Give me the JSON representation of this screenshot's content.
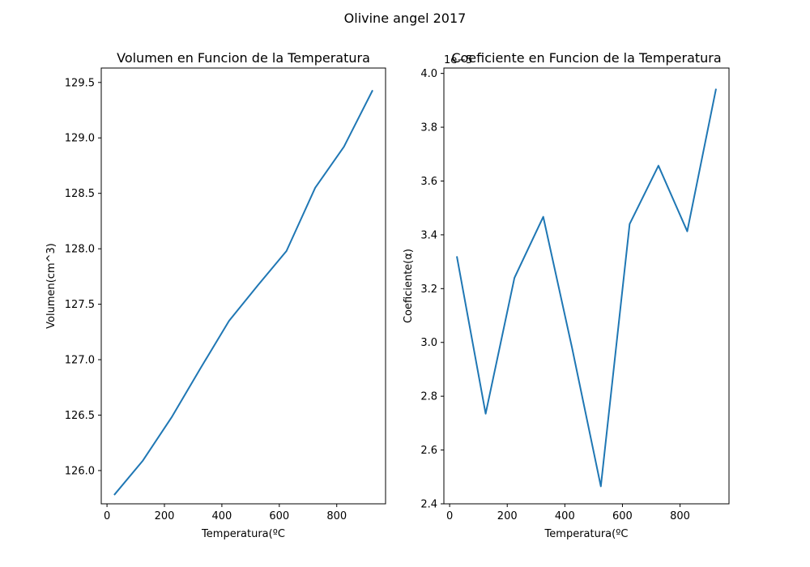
{
  "figure_title": "Olivine angel 2017",
  "colors": {
    "series": "#1f77b4"
  },
  "chart_data": [
    {
      "type": "line",
      "title": "Volumen en Funcion de la Temperatura",
      "xlabel": "Temperatura(ºC",
      "ylabel": "Volumen(cm^3)",
      "xlim": [
        -20,
        970
      ],
      "ylim": [
        125.7,
        129.63
      ],
      "xticks": [
        0,
        200,
        400,
        600,
        800
      ],
      "xtick_labels": [
        "0",
        "200",
        "400",
        "600",
        "800"
      ],
      "yticks": [
        126.0,
        126.5,
        127.0,
        127.5,
        128.0,
        128.5,
        129.0,
        129.5
      ],
      "ytick_labels": [
        "126.0",
        "126.5",
        "127.0",
        "127.5",
        "128.0",
        "128.5",
        "129.0",
        "129.5"
      ],
      "offset_text": "",
      "grid": false,
      "series": [
        {
          "x": [
            25,
            125,
            225,
            325,
            425,
            525,
            625,
            725,
            825,
            925
          ],
          "y": [
            125.78,
            126.09,
            126.48,
            126.92,
            127.35,
            127.67,
            127.98,
            128.55,
            128.92,
            129.43
          ]
        }
      ]
    },
    {
      "type": "line",
      "title": "Coeficiente en Funcion de la Temperatura",
      "xlabel": "Temperatura(ºC",
      "ylabel": "Coeficiente(α)",
      "xlim": [
        -20,
        970
      ],
      "ylim": [
        2.4,
        4.02
      ],
      "xticks": [
        0,
        200,
        400,
        600,
        800
      ],
      "xtick_labels": [
        "0",
        "200",
        "400",
        "600",
        "800"
      ],
      "yticks": [
        2.4,
        2.6,
        2.8,
        3.0,
        3.2,
        3.4,
        3.6,
        3.8,
        4.0
      ],
      "ytick_labels": [
        "2.4",
        "2.6",
        "2.8",
        "3.0",
        "3.2",
        "3.4",
        "3.6",
        "3.8",
        "4.0"
      ],
      "offset_text": "1e−5",
      "grid": false,
      "series": [
        {
          "x": [
            25,
            125,
            225,
            325,
            425,
            525,
            625,
            725,
            825,
            925
          ],
          "y": [
            3.32,
            2.735,
            3.24,
            3.467,
            2.98,
            2.465,
            3.44,
            3.657,
            3.413,
            3.943
          ]
        }
      ]
    }
  ]
}
